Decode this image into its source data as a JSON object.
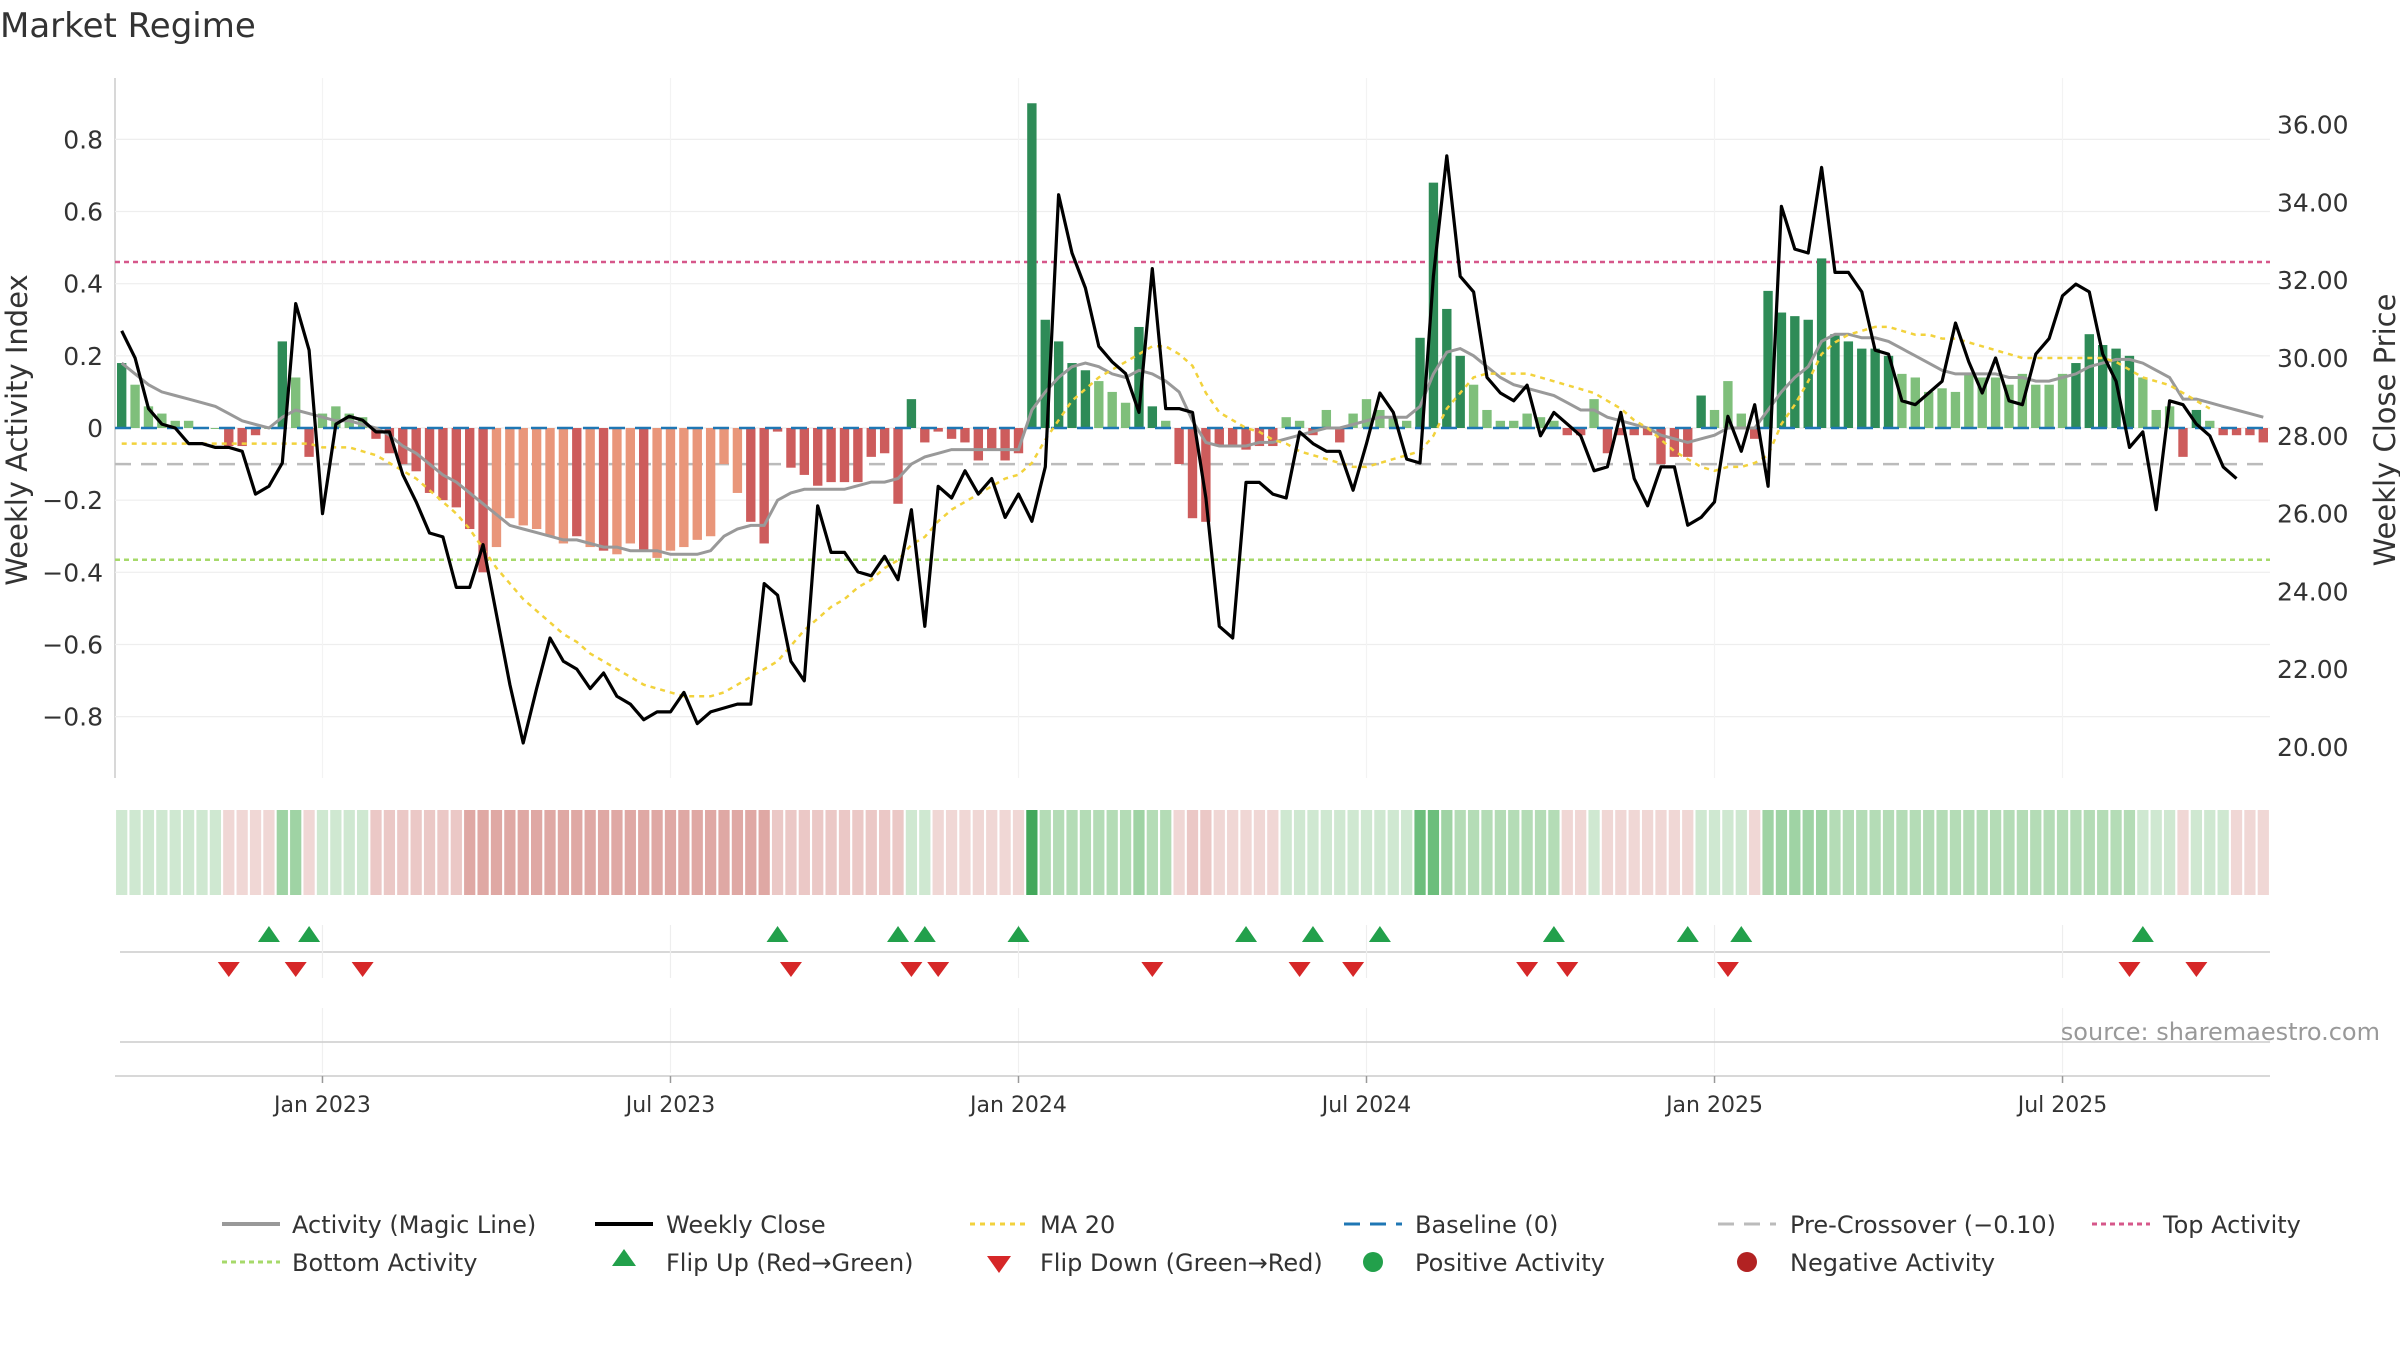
{
  "chart_data": {
    "type": "bar",
    "title": "Market Regime",
    "ylabel": "Weekly Activity Index",
    "y2label": "Weekly Close Price",
    "ylim": [
      -0.97,
      0.97
    ],
    "y2lim": [
      19.2,
      37.2
    ],
    "yticks": [
      -0.8,
      -0.6,
      -0.4,
      -0.2,
      0,
      0.2,
      0.4,
      0.6,
      0.8
    ],
    "yticks_labels": [
      "−0.8",
      "−0.6",
      "−0.4",
      "−0.2",
      "0",
      "0.2",
      "0.4",
      "0.6",
      "0.8"
    ],
    "y2ticks": [
      "20.00",
      "22.00",
      "24.00",
      "26.00",
      "28.00",
      "30.00",
      "32.00",
      "34.00",
      "36.00"
    ],
    "xticks": [
      {
        "label": "Jan 2023",
        "week": 15
      },
      {
        "label": "Jul 2023",
        "week": 41
      },
      {
        "label": "Jan 2024",
        "week": 67
      },
      {
        "label": "Jul 2024",
        "week": 93
      },
      {
        "label": "Jan 2025",
        "week": 119
      },
      {
        "label": "Jul 2025",
        "week": 145
      }
    ],
    "reference_lines": {
      "baseline": 0,
      "pre_crossover": -0.1,
      "top_activity": 0.46,
      "bottom_activity": -0.365
    },
    "activity": [
      0.18,
      0.12,
      0.06,
      0.04,
      0.02,
      0.02,
      0,
      0,
      -0.05,
      -0.05,
      -0.02,
      0,
      0.24,
      0.14,
      -0.08,
      0.04,
      0.06,
      0.04,
      0.03,
      -0.03,
      -0.07,
      -0.1,
      -0.12,
      -0.18,
      -0.2,
      -0.22,
      -0.28,
      -0.4,
      -0.33,
      -0.25,
      -0.27,
      -0.28,
      -0.3,
      -0.32,
      -0.3,
      -0.33,
      -0.34,
      -0.35,
      -0.32,
      -0.34,
      -0.36,
      -0.34,
      -0.33,
      -0.31,
      -0.3,
      -0.1,
      -0.18,
      -0.26,
      -0.32,
      -0.01,
      -0.11,
      -0.13,
      -0.16,
      -0.15,
      -0.15,
      -0.15,
      -0.08,
      -0.07,
      -0.21,
      0.08,
      -0.04,
      -0.01,
      -0.03,
      -0.04,
      -0.09,
      -0.06,
      -0.09,
      -0.07,
      0.9,
      0.3,
      0.24,
      0.18,
      0.16,
      0.13,
      0.1,
      0.07,
      0.28,
      0.06,
      0.02,
      -0.1,
      -0.25,
      -0.26,
      -0.05,
      -0.05,
      -0.06,
      -0.05,
      -0.05,
      0.03,
      0.02,
      -0.02,
      0.05,
      -0.04,
      0.04,
      0.08,
      0.05,
      0.03,
      0.02,
      0.25,
      0.68,
      0.33,
      0.2,
      0.12,
      0.05,
      0.02,
      0.02,
      0.04,
      0.03,
      0.02,
      -0.02,
      -0.02,
      0.08,
      -0.07,
      -0.02,
      -0.02,
      -0.02,
      -0.1,
      -0.08,
      -0.08,
      0.09,
      0.05,
      0.13,
      0.04,
      -0.03,
      0.38,
      0.32,
      0.31,
      0.3,
      0.47,
      0.26,
      0.24,
      0.22,
      0.22,
      0.2,
      0.15,
      0.14,
      0.1,
      0.11,
      0.1,
      0.15,
      0.14,
      0.14,
      0.12,
      0.15,
      0.12,
      0.12,
      0.15,
      0.18,
      0.26,
      0.23,
      0.22,
      0.2,
      0.14,
      0.05,
      0.06,
      -0.08,
      0.05,
      0.02,
      -0.02,
      -0.02,
      -0.02,
      -0.04
    ],
    "weekly_close": [
      30.7,
      30,
      28.7,
      28.3,
      28.2,
      27.8,
      27.8,
      27.7,
      27.7,
      27.6,
      26.5,
      26.7,
      27.3,
      31.4,
      30.2,
      26,
      28.3,
      28.5,
      28.4,
      28.1,
      28.1,
      27,
      26.3,
      25.5,
      25.4,
      24.1,
      24.1,
      25.2,
      23.4,
      21.6,
      20.1,
      21.5,
      22.8,
      22.2,
      22.0,
      21.5,
      21.9,
      21.3,
      21.1,
      20.7,
      20.9,
      20.9,
      21.4,
      20.6,
      20.9,
      21.0,
      21.1,
      21.1,
      24.2,
      23.9,
      22.2,
      21.7,
      26.2,
      25.0,
      25.0,
      24.5,
      24.4,
      24.9,
      24.3,
      26.1,
      23.1,
      26.7,
      26.4,
      27.1,
      26.5,
      26.9,
      25.9,
      26.5,
      25.8,
      27.2,
      34.2,
      32.7,
      31.8,
      30.3,
      29.9,
      29.6,
      28.6,
      32.3,
      28.7,
      28.7,
      28.6,
      26.4,
      23.1,
      22.8,
      26.8,
      26.8,
      26.5,
      26.4,
      28.1,
      27.8,
      27.6,
      27.6,
      26.6,
      27.8,
      29.1,
      28.6,
      27.4,
      27.3,
      32.1,
      35.2,
      32.1,
      31.7,
      29.5,
      29.1,
      28.9,
      29.3,
      28.0,
      28.6,
      28.3,
      28.0,
      27.1,
      27.2,
      28.6,
      26.9,
      26.2,
      27.2,
      27.2,
      25.7,
      25.9,
      26.3,
      28.5,
      27.6,
      28.8,
      26.7,
      33.9,
      32.8,
      32.7,
      34.9,
      32.2,
      32.2,
      31.7,
      30.2,
      30.1,
      28.9,
      28.8,
      29.1,
      29.4,
      30.9,
      29.9,
      29.1,
      30.0,
      28.9,
      28.8,
      30.1,
      30.5,
      31.6,
      31.9,
      31.7,
      30.1,
      29.4,
      27.7,
      28.1,
      26.1,
      28.9,
      28.8,
      28.3,
      28.0,
      27.2,
      26.9
    ],
    "magic_line": [
      0.18,
      0.15,
      0.12,
      0.1,
      0.09,
      0.08,
      0.07,
      0.06,
      0.04,
      0.02,
      0.01,
      0,
      0.03,
      0.05,
      0.04,
      0.03,
      0.02,
      0.02,
      0.01,
      0,
      -0.02,
      -0.05,
      -0.07,
      -0.1,
      -0.13,
      -0.15,
      -0.18,
      -0.21,
      -0.24,
      -0.27,
      -0.28,
      -0.29,
      -0.3,
      -0.31,
      -0.31,
      -0.32,
      -0.33,
      -0.33,
      -0.34,
      -0.34,
      -0.34,
      -0.35,
      -0.35,
      -0.35,
      -0.34,
      -0.3,
      -0.28,
      -0.27,
      -0.27,
      -0.2,
      -0.18,
      -0.17,
      -0.17,
      -0.17,
      -0.17,
      -0.16,
      -0.15,
      -0.15,
      -0.14,
      -0.1,
      -0.08,
      -0.07,
      -0.06,
      -0.06,
      -0.06,
      -0.06,
      -0.06,
      -0.06,
      0.05,
      0.1,
      0.14,
      0.17,
      0.18,
      0.17,
      0.15,
      0.14,
      0.16,
      0.15,
      0.13,
      0.1,
      0.02,
      -0.04,
      -0.05,
      -0.05,
      -0.05,
      -0.04,
      -0.04,
      -0.03,
      -0.02,
      -0.01,
      0,
      0,
      0.01,
      0.02,
      0.03,
      0.03,
      0.03,
      0.06,
      0.15,
      0.21,
      0.22,
      0.2,
      0.17,
      0.14,
      0.12,
      0.11,
      0.1,
      0.09,
      0.07,
      0.05,
      0.05,
      0.03,
      0.02,
      0.01,
      0,
      -0.02,
      -0.03,
      -0.04,
      -0.03,
      -0.02,
      0,
      0,
      0,
      0.05,
      0.1,
      0.14,
      0.17,
      0.24,
      0.26,
      0.26,
      0.25,
      0.25,
      0.24,
      0.22,
      0.2,
      0.18,
      0.16,
      0.15,
      0.15,
      0.15,
      0.15,
      0.14,
      0.14,
      0.13,
      0.13,
      0.14,
      0.15,
      0.17,
      0.18,
      0.19,
      0.19,
      0.18,
      0.16,
      0.14,
      0.08,
      0.08,
      0.07,
      0.06,
      0.05,
      0.04,
      0.03
    ],
    "ma20": [
      27.8,
      27.8,
      27.8,
      27.8,
      27.8,
      27.8,
      27.8,
      27.8,
      27.8,
      27.8,
      27.8,
      27.8,
      27.8,
      27.8,
      27.8,
      27.7,
      27.7,
      27.7,
      27.6,
      27.5,
      27.3,
      27.1,
      26.9,
      26.6,
      26.3,
      26,
      25.6,
      25.1,
      24.6,
      24.2,
      23.8,
      23.5,
      23.2,
      22.9,
      22.7,
      22.4,
      22.2,
      22,
      21.8,
      21.6,
      21.5,
      21.4,
      21.3,
      21.3,
      21.3,
      21.4,
      21.6,
      21.8,
      22,
      22.2,
      22.6,
      23,
      23.3,
      23.6,
      23.8,
      24.1,
      24.3,
      24.6,
      24.8,
      25.2,
      25.4,
      25.8,
      26.1,
      26.3,
      26.5,
      26.7,
      26.9,
      27,
      27.3,
      27.9,
      28.4,
      28.9,
      29.2,
      29.5,
      29.7,
      29.9,
      30.1,
      30.3,
      30.3,
      30.1,
      29.8,
      29.1,
      28.6,
      28.4,
      28.2,
      28.1,
      27.9,
      27.8,
      27.6,
      27.5,
      27.4,
      27.3,
      27.2,
      27.2,
      27.3,
      27.4,
      27.5,
      27.6,
      28,
      28.7,
      29.1,
      29.5,
      29.6,
      29.6,
      29.6,
      29.6,
      29.5,
      29.4,
      29.3,
      29.2,
      29.1,
      28.9,
      28.7,
      28.4,
      28.2,
      27.9,
      27.6,
      27.4,
      27.2,
      27.1,
      27.2,
      27.2,
      27.3,
      27.5,
      28.3,
      28.8,
      29.4,
      30.1,
      30.4,
      30.6,
      30.7,
      30.8,
      30.8,
      30.7,
      30.6,
      30.6,
      30.5,
      30.5,
      30.4,
      30.3,
      30.2,
      30.1,
      30,
      30,
      30,
      30,
      30,
      30,
      30,
      29.9,
      29.7,
      29.5,
      29.4,
      29.3,
      29.1,
      28.9,
      28.7
    ],
    "regime_strip": [
      0.3,
      0.3,
      0.3,
      0.3,
      0.3,
      0.3,
      0.3,
      0.3,
      -0.3,
      -0.3,
      -0.3,
      -0.3,
      0.6,
      0.6,
      -0.3,
      0.3,
      0.3,
      0.3,
      0.3,
      -0.5,
      -0.5,
      -0.5,
      -0.5,
      -0.5,
      -0.5,
      -0.5,
      -0.7,
      -0.7,
      -0.7,
      -0.7,
      -0.7,
      -0.7,
      -0.7,
      -0.7,
      -0.7,
      -0.7,
      -0.7,
      -0.7,
      -0.7,
      -0.7,
      -0.7,
      -0.7,
      -0.7,
      -0.7,
      -0.7,
      -0.7,
      -0.7,
      -0.7,
      -0.7,
      -0.5,
      -0.5,
      -0.5,
      -0.5,
      -0.5,
      -0.5,
      -0.5,
      -0.5,
      -0.5,
      -0.5,
      0.3,
      0.3,
      -0.3,
      -0.3,
      -0.3,
      -0.3,
      -0.3,
      -0.3,
      -0.3,
      1,
      0.5,
      0.5,
      0.5,
      0.5,
      0.5,
      0.5,
      0.5,
      0.6,
      0.5,
      0.5,
      -0.3,
      -0.5,
      -0.5,
      -0.3,
      -0.3,
      -0.3,
      -0.3,
      -0.3,
      0.3,
      0.3,
      0.3,
      0.3,
      0.3,
      0.3,
      0.3,
      0.3,
      0.3,
      0.3,
      0.7,
      0.7,
      0.6,
      0.5,
      0.5,
      0.5,
      0.5,
      0.5,
      0.5,
      0.5,
      0.5,
      -0.3,
      -0.3,
      0.3,
      -0.3,
      -0.3,
      -0.3,
      -0.3,
      -0.3,
      -0.3,
      -0.3,
      0.3,
      0.3,
      0.3,
      0.3,
      -0.3,
      0.6,
      0.6,
      0.6,
      0.6,
      0.6,
      0.5,
      0.5,
      0.5,
      0.5,
      0.5,
      0.5,
      0.5,
      0.5,
      0.5,
      0.5,
      0.5,
      0.5,
      0.5,
      0.5,
      0.5,
      0.5,
      0.5,
      0.5,
      0.5,
      0.5,
      0.5,
      0.5,
      0.5,
      0.3,
      0.3,
      0.3,
      -0.3,
      0.3,
      0.3,
      0.3,
      -0.3,
      -0.3,
      -0.3
    ],
    "flip_up_weeks": [
      11,
      14,
      49,
      58,
      60,
      67,
      84,
      89,
      94,
      107,
      117,
      121,
      151
    ],
    "flip_down_weeks": [
      8,
      13,
      18,
      50,
      59,
      61,
      77,
      88,
      92,
      105,
      108,
      120,
      150,
      155
    ],
    "source": "source: sharemaestro.com",
    "legend": [
      "Activity (Magic Line)",
      "Weekly Close",
      "MA 20",
      "Baseline (0)",
      "Pre-Crossover (−0.10)",
      "Top Activity",
      "Bottom Activity",
      "Flip Up (Red→Green)",
      "Flip Down (Green→Red)",
      "Positive Activity",
      "Negative Activity"
    ]
  },
  "colors": {
    "pos_dark": "#2e8b57",
    "pos_light": "#7fbf7b",
    "neg_dark": "#cd5c5c",
    "neg_light": "#e9967a",
    "magic": "#999999",
    "close": "#000000",
    "ma": "#f2d23c",
    "baseline": "#1f77b4",
    "pre": "#bbbbbb",
    "top": "#d6578a",
    "bottom": "#a6d96a",
    "flip_up": "#22a04b",
    "flip_down": "#d62728"
  }
}
